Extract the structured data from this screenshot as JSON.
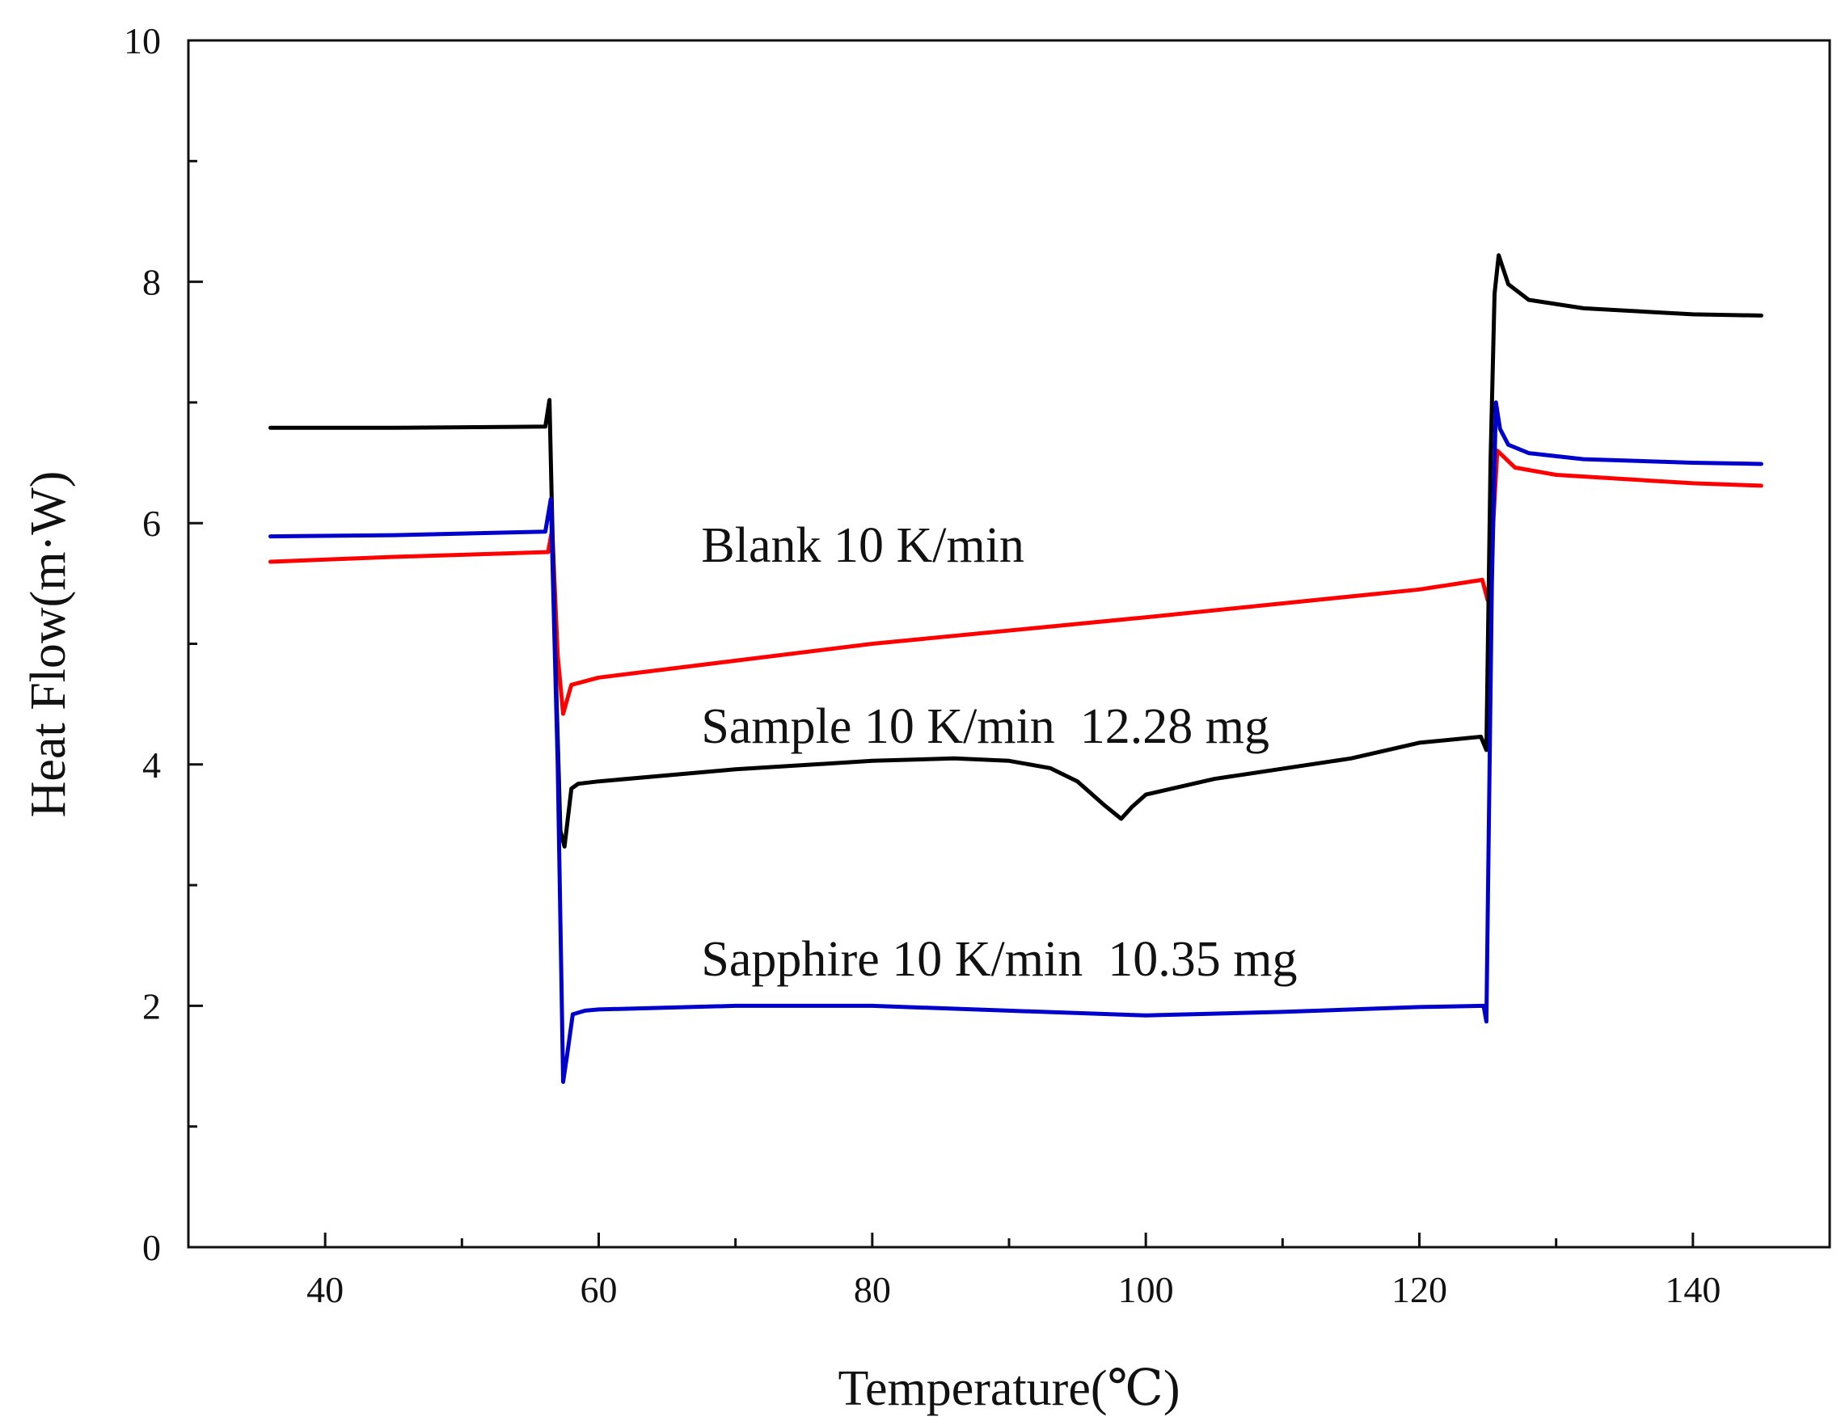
{
  "chart_data": {
    "type": "line",
    "xlabel": "Temperature(℃)",
    "ylabel": "Heat Flow(m·W)",
    "xlim": [
      30,
      150
    ],
    "ylim": [
      0,
      10
    ],
    "x_ticks": [
      40,
      60,
      80,
      100,
      120,
      140
    ],
    "y_ticks": [
      0,
      2,
      4,
      6,
      8,
      10
    ],
    "x_ticks_labels": [
      "40",
      "60",
      "80",
      "100",
      "120",
      "140"
    ],
    "y_ticks_labels": [
      "0",
      "2",
      "4",
      "6",
      "8",
      "10"
    ],
    "grid": false,
    "series": [
      {
        "name": "Blank 10 K/min",
        "color": "#ff0000",
        "x": [
          36,
          45,
          56.3,
          56.6,
          57.0,
          57.4,
          58.0,
          60,
          80,
          100,
          120,
          124.6,
          125.0,
          125.3,
          125.7,
          127,
          130,
          140,
          145
        ],
        "y": [
          5.68,
          5.72,
          5.76,
          5.95,
          4.9,
          4.42,
          4.66,
          4.72,
          5.0,
          5.22,
          5.45,
          5.53,
          5.36,
          5.8,
          6.6,
          6.46,
          6.4,
          6.33,
          6.31
        ]
      },
      {
        "name": "Sample 10 K/min  12.28 mg",
        "color": "#000000",
        "x": [
          36,
          45,
          56.1,
          56.4,
          56.8,
          57.2,
          57.5,
          58.0,
          58.5,
          60,
          70,
          80,
          86,
          90,
          93,
          95,
          97,
          98.2,
          99,
          100,
          105,
          115,
          120,
          124.5,
          124.9,
          125.2,
          125.5,
          125.8,
          126.5,
          128,
          132,
          140,
          145
        ],
        "y": [
          6.79,
          6.79,
          6.8,
          7.02,
          5.0,
          3.45,
          3.32,
          3.8,
          3.84,
          3.86,
          3.96,
          4.03,
          4.05,
          4.03,
          3.97,
          3.86,
          3.66,
          3.55,
          3.65,
          3.75,
          3.88,
          4.05,
          4.18,
          4.23,
          4.12,
          6.5,
          7.9,
          8.22,
          7.98,
          7.85,
          7.78,
          7.73,
          7.72
        ]
      },
      {
        "name": "Sapphire 10 K/min  10.35 mg",
        "color": "#0000cc",
        "x": [
          36,
          45,
          56.1,
          56.5,
          57.0,
          57.4,
          57.7,
          58.1,
          59,
          60,
          70,
          80,
          90,
          100,
          110,
          120,
          124.7,
          124.9,
          125.3,
          125.6,
          125.9,
          126.5,
          128,
          132,
          140,
          145
        ],
        "y": [
          5.89,
          5.9,
          5.93,
          6.2,
          4.0,
          1.37,
          1.6,
          1.93,
          1.96,
          1.97,
          2.0,
          2.0,
          1.96,
          1.92,
          1.95,
          1.99,
          2.0,
          1.87,
          5.5,
          7.0,
          6.78,
          6.65,
          6.58,
          6.53,
          6.5,
          6.49
        ]
      }
    ],
    "annotations": [
      {
        "text": "Blank 10 K/min",
        "x": 67.5,
        "y": 5.68
      },
      {
        "text": "Sample 10 K/min  12.28 mg",
        "x": 67.5,
        "y": 4.18
      },
      {
        "text": "Sapphire 10 K/min  10.35 mg",
        "x": 67.5,
        "y": 2.25
      }
    ]
  }
}
